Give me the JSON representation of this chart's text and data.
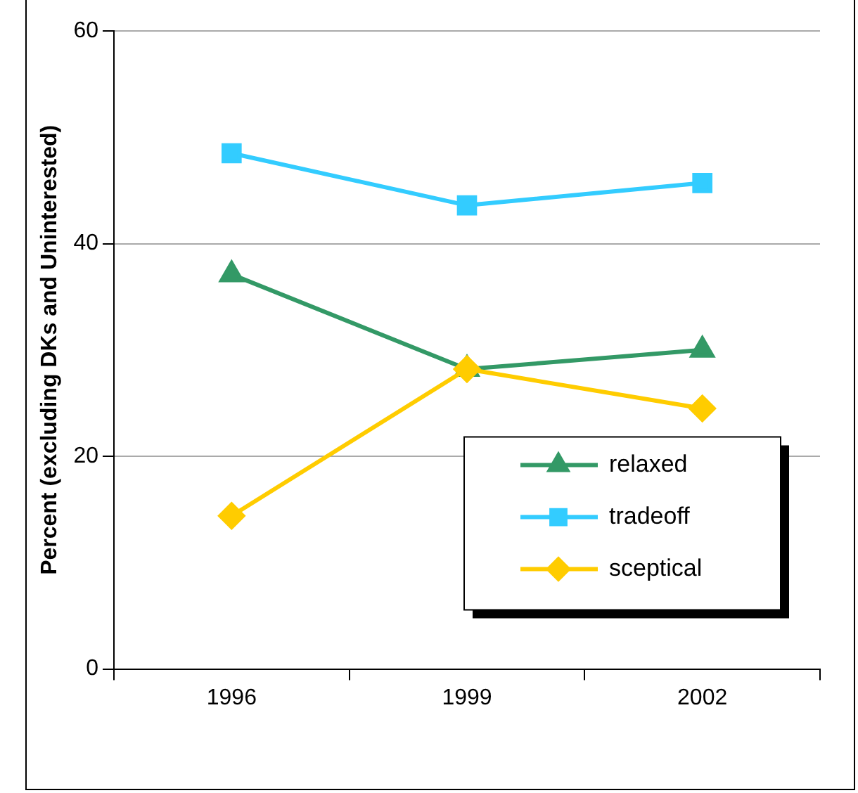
{
  "chart_data": {
    "type": "line",
    "ylabel": "Percent (excluding DKs and Uninterested)",
    "categories": [
      "1996",
      "1999",
      "2002"
    ],
    "series": [
      {
        "name": "relaxed",
        "color": "#339966",
        "marker": "triangle",
        "values": [
          37.1,
          28.2,
          30.0
        ]
      },
      {
        "name": "tradeoff",
        "color": "#33ccff",
        "marker": "square",
        "values": [
          48.5,
          43.6,
          45.7
        ]
      },
      {
        "name": "sceptical",
        "color": "#ffcc00",
        "marker": "diamond",
        "values": [
          14.4,
          28.2,
          24.5
        ]
      }
    ],
    "ylim": [
      0,
      60
    ],
    "yticks": [
      0,
      20,
      40,
      60
    ],
    "grid": "y",
    "legend": "bottom right"
  }
}
